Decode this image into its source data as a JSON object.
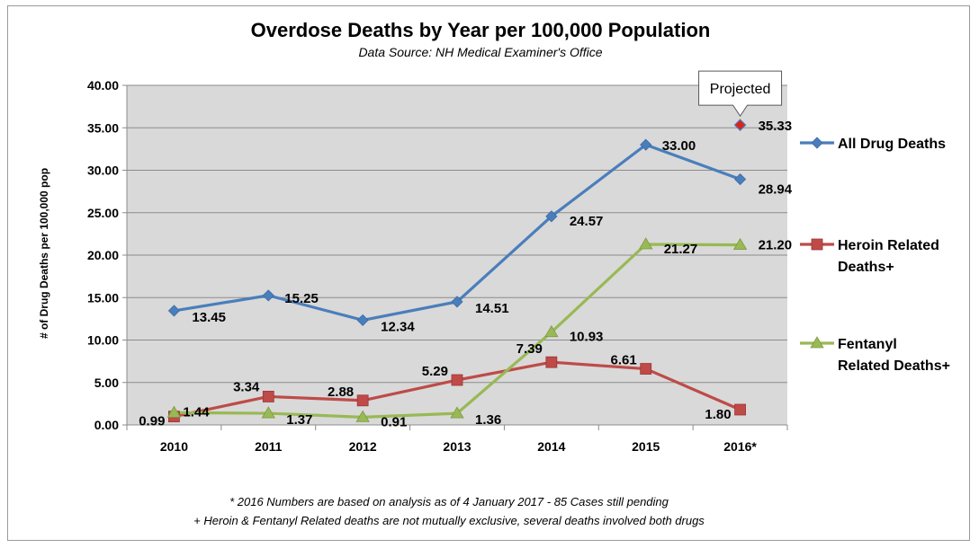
{
  "chart_data": {
    "type": "line",
    "title": "Overdose Deaths by Year per 100,000 Population",
    "subtitle": "Data Source: NH Medical Examiner's Office",
    "ylabel": "# of Drug Deaths per 100,000 pop",
    "xlabel": "",
    "ylim": [
      0,
      40
    ],
    "ytick_labels": [
      "0.00",
      "5.00",
      "10.00",
      "15.00",
      "20.00",
      "25.00",
      "30.00",
      "35.00",
      "40.00"
    ],
    "categories": [
      "2010",
      "2011",
      "2012",
      "2013",
      "2014",
      "2015",
      "2016*"
    ],
    "grid": "horizontal",
    "legend_position": "right",
    "series": [
      {
        "name": "All Drug Deaths",
        "color": "#4a7ebb",
        "marker": "diamond",
        "values": [
          13.45,
          15.25,
          12.34,
          14.51,
          24.57,
          33.0,
          28.94
        ],
        "labels": [
          "13.45",
          "15.25",
          "12.34",
          "14.51",
          "24.57",
          "33.00",
          "28.94"
        ]
      },
      {
        "name": "Heroin Related Deaths+",
        "legend_lines": [
          "Heroin Related",
          "Deaths+"
        ],
        "color": "#be4b48",
        "marker": "square",
        "values": [
          0.99,
          3.34,
          2.88,
          5.29,
          7.39,
          6.61,
          1.8
        ],
        "labels": [
          "0.99",
          "3.34",
          "2.88",
          "5.29",
          "7.39",
          "6.61",
          "1.80"
        ]
      },
      {
        "name": "Fentanyl Related Deaths+",
        "legend_lines": [
          "Fentanyl",
          "Related Deaths+"
        ],
        "color": "#98b954",
        "marker": "triangle",
        "values": [
          1.44,
          1.37,
          0.91,
          1.36,
          10.93,
          21.27,
          21.2
        ],
        "labels": [
          "1.44",
          "1.37",
          "0.91",
          "1.36",
          "10.93",
          "21.27",
          "21.20"
        ]
      }
    ],
    "projected": {
      "category": "2016*",
      "value": 35.33,
      "label": "35.33",
      "callout": "Projected",
      "color": "#e0201a"
    },
    "footnotes": [
      "* 2016 Numbers are based on analysis as of 4 January 2017 - 85  Cases still pending",
      "+ Heroin & Fentanyl Related deaths are not mutually exclusive, several deaths involved both drugs"
    ],
    "plot_background": "#d9d9d9"
  }
}
